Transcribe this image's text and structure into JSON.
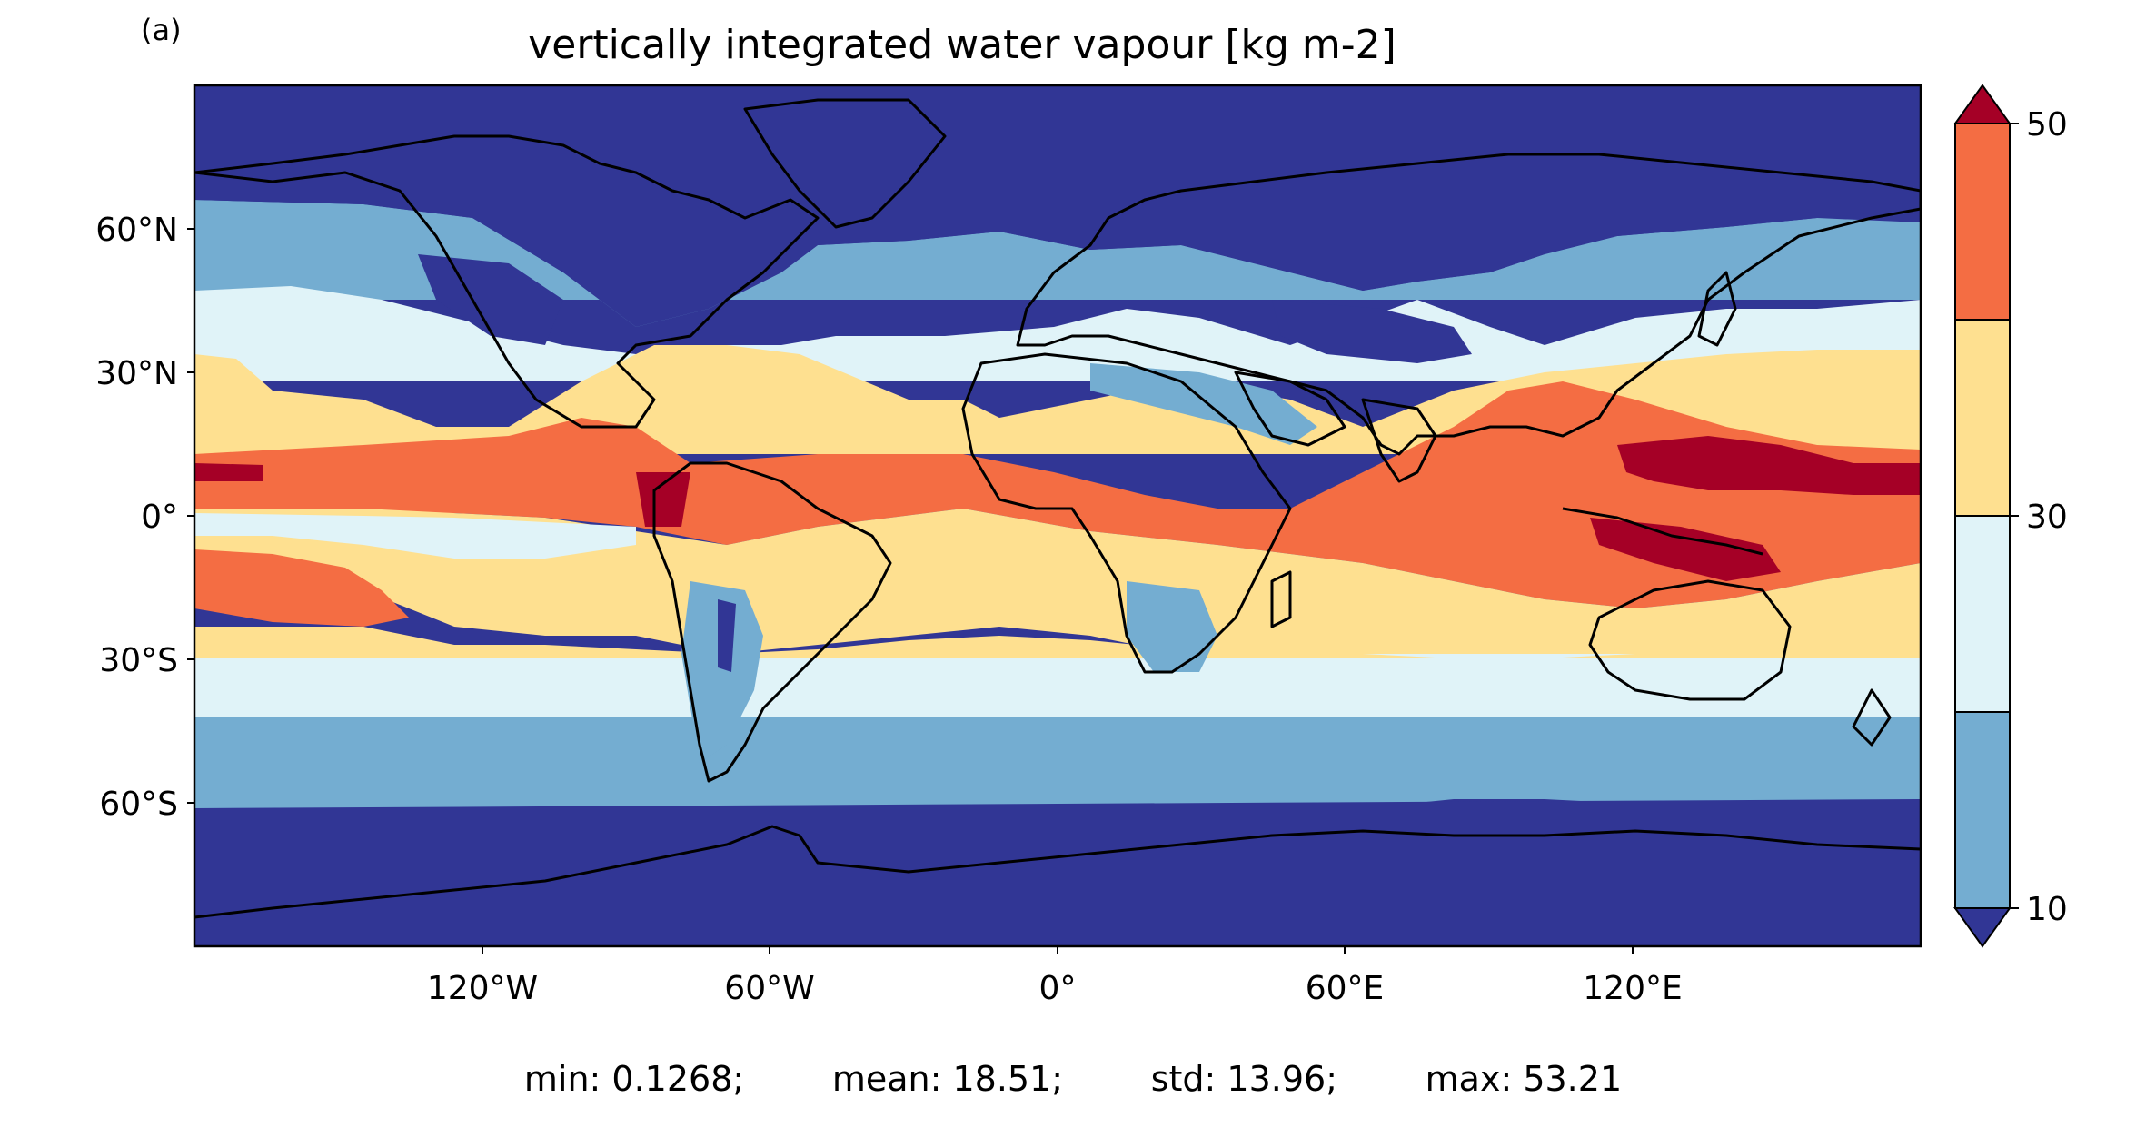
{
  "panel": {
    "label": "(a)"
  },
  "map": {
    "title": "vertically integrated water vapour [kg m-2]",
    "projection": "plate carree",
    "extent": {
      "lon": [
        -180,
        180
      ],
      "lat": [
        -90,
        90
      ]
    },
    "lat_ticks": [
      "60°N",
      "30°N",
      "0°",
      "30°S",
      "60°S"
    ],
    "lon_ticks": [
      "120°W",
      "60°W",
      "0°",
      "60°E",
      "120°E"
    ],
    "field_bands_note": "",
    "colors": {
      "lt10": "#313695",
      "b10_20": "#74add1",
      "b20_30": "#e0f3f8",
      "b30_40": "#fee090",
      "b40_50": "#f46d43",
      "gt50": "#a50026",
      "ocean_bg": "#313695"
    }
  },
  "colorbar": {
    "ticks": [
      "50",
      "30",
      "10"
    ],
    "levels": [
      10,
      20,
      30,
      40,
      50
    ],
    "extend": "both",
    "colors": [
      "#313695",
      "#74add1",
      "#e0f3f8",
      "#fee090",
      "#f46d43",
      "#a50026"
    ]
  },
  "stats": {
    "min": "min: 0.1268;",
    "mean": "mean: 18.51;",
    "std": "std: 13.96;",
    "max": "max: 53.21"
  }
}
